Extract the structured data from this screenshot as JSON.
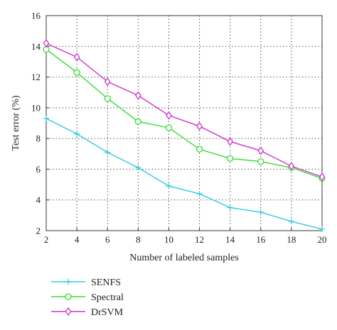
{
  "chart_data": {
    "type": "line",
    "title": "",
    "xlabel": "Number of labeled samples",
    "ylabel": "Test error (%)",
    "x": [
      2,
      4,
      6,
      8,
      10,
      12,
      14,
      16,
      18,
      20
    ],
    "xlim": [
      2,
      20
    ],
    "ylim": [
      2,
      16
    ],
    "xticks": [
      "2",
      "4",
      "6",
      "8",
      "10",
      "12",
      "14",
      "16",
      "18",
      "20"
    ],
    "yticks": [
      "2",
      "4",
      "6",
      "8",
      "10",
      "12",
      "14",
      "16"
    ],
    "grid": "dotted",
    "legend_position": "below plot, left",
    "series": [
      {
        "name": "SENFS",
        "color": "#33ccdd",
        "marker": "plus",
        "values": [
          9.3,
          8.3,
          7.1,
          6.1,
          4.9,
          4.4,
          3.5,
          3.2,
          2.6,
          2.1
        ]
      },
      {
        "name": "Spectral",
        "color": "#33dd33",
        "marker": "circle",
        "values": [
          13.8,
          12.3,
          10.6,
          9.1,
          8.7,
          7.3,
          6.7,
          6.5,
          6.1,
          5.4
        ]
      },
      {
        "name": "DrSVM",
        "color": "#cc33cc",
        "marker": "diamond",
        "values": [
          14.2,
          13.3,
          11.7,
          10.8,
          9.5,
          8.8,
          7.8,
          7.2,
          6.2,
          5.5
        ]
      }
    ]
  }
}
